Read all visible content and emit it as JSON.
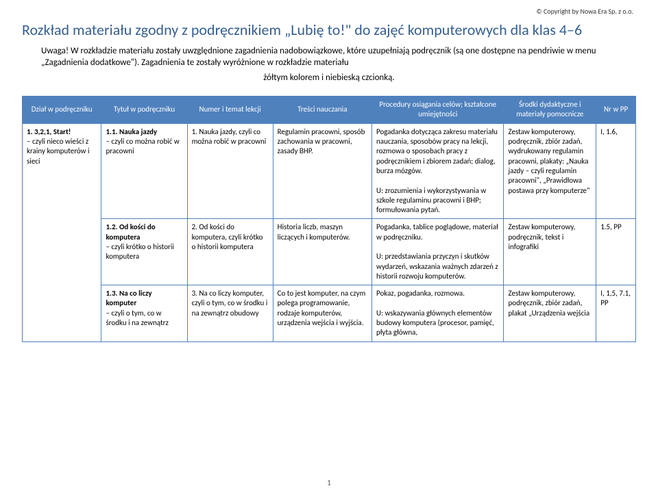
{
  "copyright": "© Copyright by Nowa Era Sp. z o.o.",
  "title": "Rozkład materiału zgodny z podręcznikiem „Lubię to!\" do zajęć komputerowych dla klas 4–6",
  "intro_line1": "Uwaga! W rozkładzie materiału zostały uwzględnione zagadnienia nadobowiązkowe, które uzupełniają podręcznik (są one dostępne na pendriwie w menu „Zagadnienia dodatkowe\"). Zagadnienia te zostały wyróżnione w rozkładzie materiału",
  "intro_line2": "żółtym kolorem i niebieską czcionką.",
  "page_number": "1",
  "columns": [
    "Dział w podręczniku",
    "Tytuł w podręczniku",
    "Numer i temat lekcji",
    "Treści nauczania",
    "Procedury osiągania celów; kształcone umiejętności",
    "Środki dydaktyczne i materiały pomocnicze",
    "Nr w PP"
  ],
  "dzial": {
    "title": "1. 3,2,1, Start!",
    "sub": "– czyli nieco wieści z krainy komputerów i sieci"
  },
  "rows": [
    {
      "tytul_bold": "1.1. Nauka jazdy",
      "tytul_rest": "– czyli co można robić w pracowni",
      "numer": "1. Nauka jazdy, czyli co można robić w pracowni",
      "tresci": "Regulamin pracowni, sposób zachowania w pracowni, zasady BHP.",
      "proc": "Pogadanka dotycząca zakresu materiału nauczania, sposobów pracy na lekcji, rozmowa o sposobach pracy z podręcznikiem i zbiorem zadań; dialog, burza mózgów.\n\nU: zrozumienia i wykorzystywania w szkole regulaminu pracowni i BHP; formułowania pytań.",
      "srodki": "Zestaw komputerowy, podręcznik, zbiór zadań, wydrukowany regulamin pracowni, plakaty: „Nauka jazdy – czyli regulamin pracowni\", „Prawidłowa postawa przy komputerze\"",
      "nr": "I, 1.6,"
    },
    {
      "tytul_bold": "1.2. Od kości do komputera",
      "tytul_rest": "– czyli krótko o historii komputera",
      "numer": "2. Od kości do komputera, czyli krótko o historii komputera",
      "tresci": "Historia liczb, maszyn liczących i komputerów.",
      "proc": "Pogadanka, tablice poglądowe, materiał w podręczniku.\n\nU: przedstawiania przyczyn i skutków wydarzeń, wskazania ważnych zdarzeń z historii rozwoju komputerów.",
      "srodki": "Zestaw komputerowy, podręcznik, tekst i infografiki",
      "nr": "1.5, PP"
    },
    {
      "tytul_bold": "1.3. Na co liczy komputer",
      "tytul_rest": "– czyli o tym, co w środku i na zewnątrz",
      "numer": "3. Na co liczy komputer, czyli o tym, co w środku i na zewnątrz obudowy",
      "tresci": "Co to jest komputer, na czym polega programowanie, rodzaje komputerów, urządzenia wejścia i wyjścia.",
      "proc": "Pokaz, pogadanka, rozmowa.\n\nU: wskazywania głównych elementów budowy komputera (procesor, pamięć, płyta główna,",
      "srodki": "Zestaw komputerowy, podręcznik, zbiór zadań, plakat „Urządzenia wejścia",
      "nr": "I, 1,5, 7.1, PP"
    }
  ]
}
